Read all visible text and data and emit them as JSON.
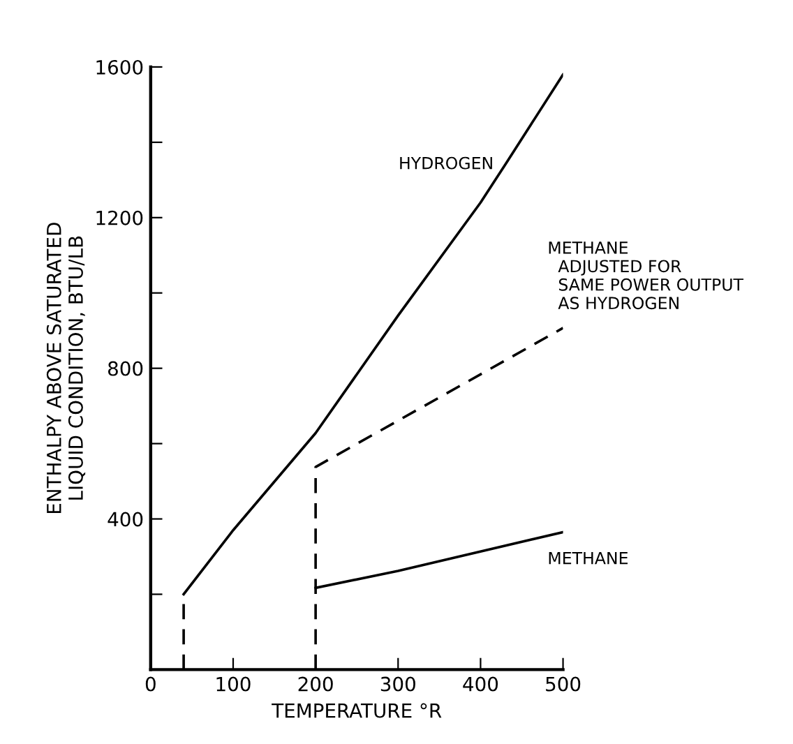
{
  "chart_data": {
    "type": "line",
    "xlabel": "TEMPERATURE °R",
    "ylabel": "ENTHALPY ABOVE SATURATED\nLIQUID CONDITION, BTU/LB",
    "xlim": [
      0,
      500
    ],
    "ylim": [
      0,
      1600
    ],
    "xticks": [
      0,
      100,
      200,
      300,
      400,
      500
    ],
    "yticks": [
      {
        "value": 200,
        "label": null
      },
      400,
      {
        "value": 600,
        "label": null
      },
      800,
      {
        "value": 1000,
        "label": null
      },
      1200,
      {
        "value": 1400,
        "label": null
      },
      1600
    ],
    "grid": false,
    "legend": false,
    "marker": "none",
    "series": [
      {
        "name": "HYDROGEN",
        "color": "#000000",
        "line_style": "solid",
        "x": [
          40,
          100,
          200,
          300,
          400,
          430,
          500
        ],
        "values": [
          200,
          370,
          628,
          940,
          1240,
          1341,
          1580
        ]
      },
      {
        "color": "#000000",
        "line_style": "dashed",
        "x": [
          40,
          40
        ],
        "values": [
          0,
          200
        ]
      },
      {
        "name": "METHANE",
        "color": "#000000",
        "line_style": "solid",
        "x": [
          200,
          300,
          500
        ],
        "values": [
          217,
          262,
          365
        ]
      },
      {
        "name": "METHANE\n  ADJUSTED FOR\n  SAME POWER OUTPUT\n  AS HYDROGEN",
        "color": "#000000",
        "line_style": "dashed",
        "x": [
          200,
          200,
          500
        ],
        "values": [
          0,
          538,
          907
        ]
      }
    ]
  }
}
